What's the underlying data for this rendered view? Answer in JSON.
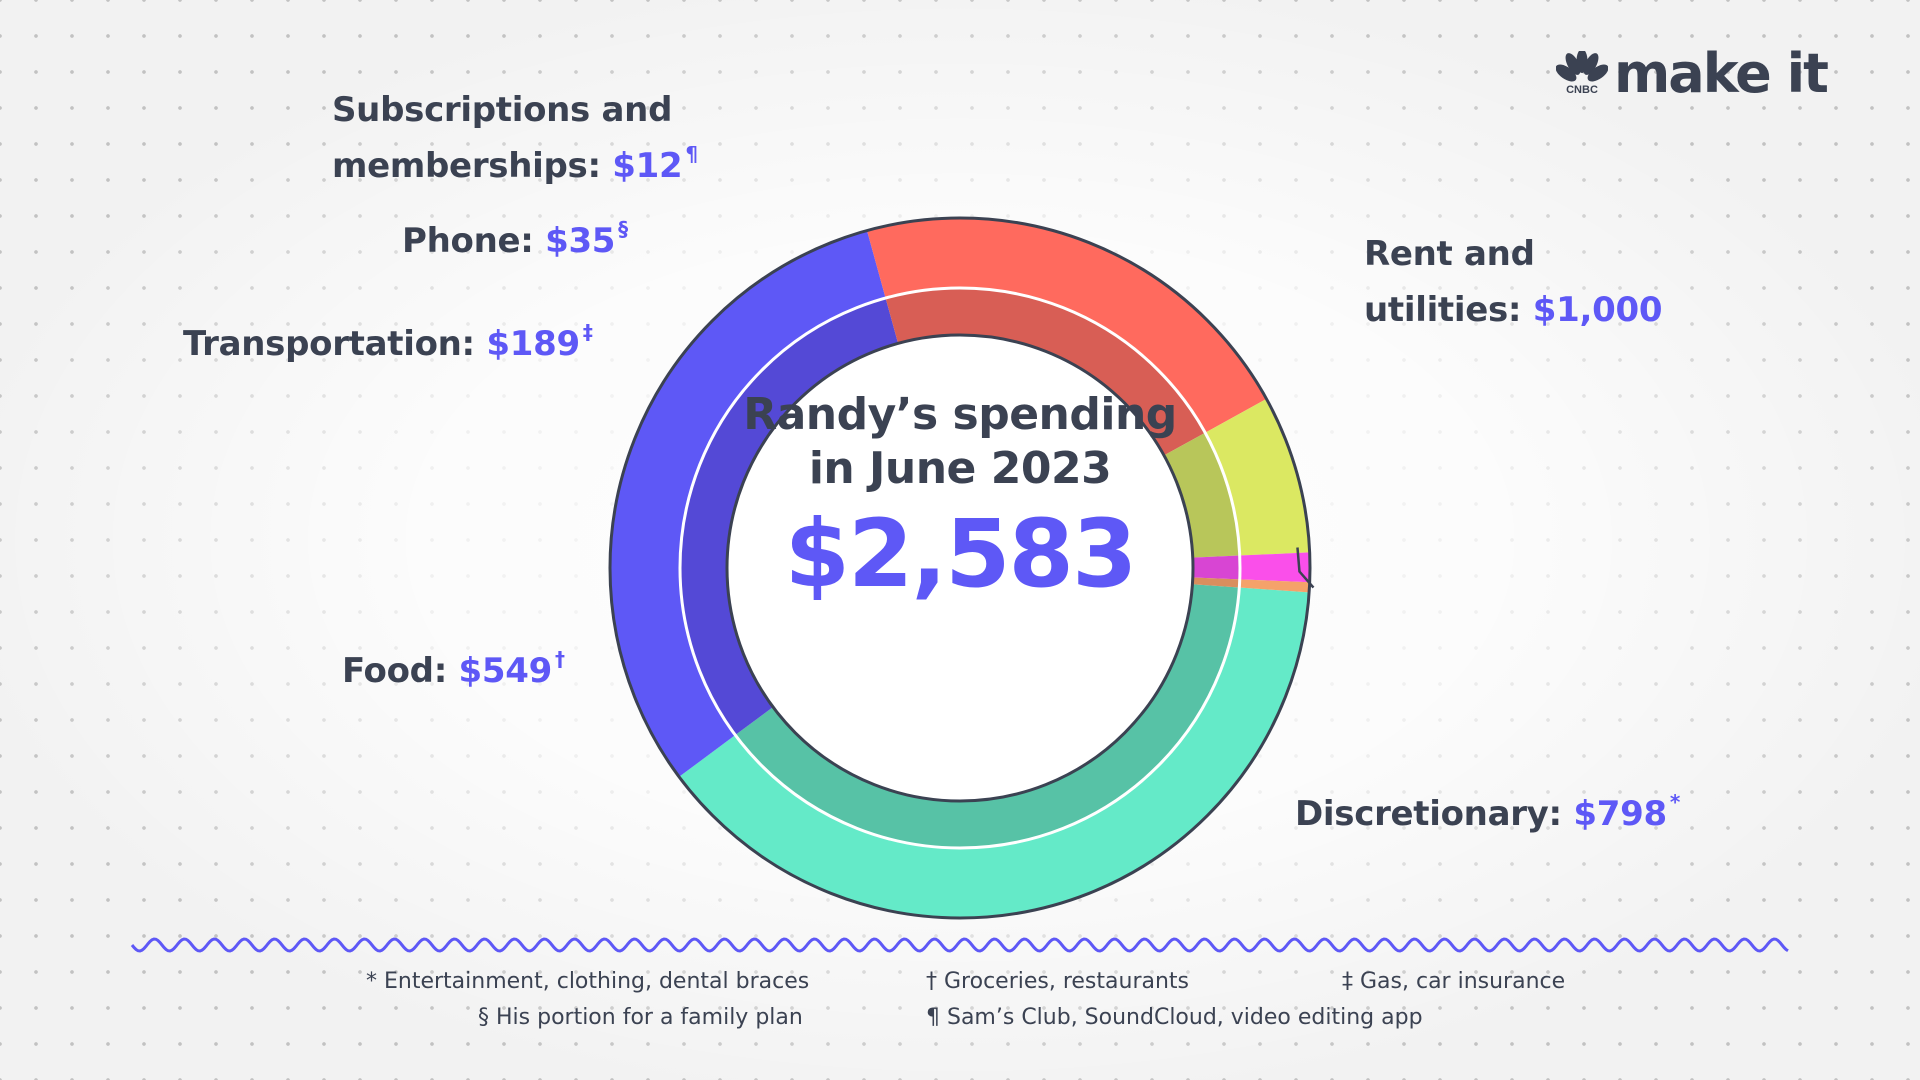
{
  "brand": {
    "network": "CNBC",
    "name": "make it"
  },
  "center": {
    "title_line1": "Randy’s spending",
    "title_line2": "in June 2023",
    "total": "$2,583"
  },
  "chart_data": {
    "type": "pie",
    "title": "Randy’s spending in June 2023",
    "total": 2583,
    "slices": [
      {
        "key": "rent",
        "label_line1": "Rent and",
        "label_line2": "utilities:",
        "amount": "$1,000",
        "value": 1000,
        "mark": "",
        "color": "#64eac8",
        "inner_color": "#57c2a6"
      },
      {
        "key": "discretionary",
        "label": "Discretionary:",
        "amount": "$798",
        "value": 798,
        "mark": "*",
        "color": "#5e58f6",
        "inner_color": "#5449d6"
      },
      {
        "key": "food",
        "label": "Food:",
        "amount": "$549",
        "value": 549,
        "mark": "†",
        "color": "#ff6a5e",
        "inner_color": "#d85e55"
      },
      {
        "key": "transportation",
        "label": "Transportation:",
        "amount": "$189",
        "value": 189,
        "mark": "‡",
        "color": "#dbe862",
        "inner_color": "#b8c65a"
      },
      {
        "key": "phone",
        "label": "Phone:",
        "amount": "$35",
        "value": 35,
        "mark": "§",
        "color": "#fa4fea",
        "inner_color": "#d845d3"
      },
      {
        "key": "subscriptions",
        "label_line1": "Subscriptions and",
        "label_line2": "memberships:",
        "amount": "$12",
        "value": 12,
        "mark": "¶",
        "color": "#f5a26a",
        "inner_color": "#d98e5e"
      }
    ]
  },
  "footnotes": [
    {
      "key": "discretionary",
      "text": "* Entertainment, clothing, dental braces"
    },
    {
      "key": "food",
      "text": "† Groceries, restaurants"
    },
    {
      "key": "transportation",
      "text": "‡ Gas, car insurance"
    },
    {
      "key": "phone",
      "text": "§ His portion for a family plan"
    },
    {
      "key": "subscriptions",
      "text": "¶ Sam’s Club, SoundCloud, video editing app"
    }
  ]
}
